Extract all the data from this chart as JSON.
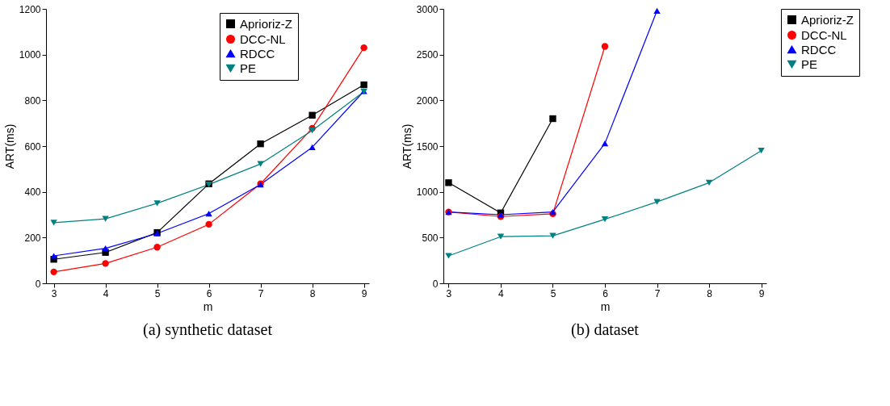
{
  "chart_data": [
    {
      "type": "line",
      "title": "(a) synthetic dataset",
      "xlabel": "m",
      "ylabel": "ART(ms)",
      "x": [
        3,
        4,
        5,
        6,
        7,
        8,
        9
      ],
      "xlim": [
        2.85,
        9.1
      ],
      "xticks": [
        3,
        4,
        5,
        6,
        7,
        8,
        9
      ],
      "ylim": [
        0,
        1200
      ],
      "yticks": [
        0,
        200,
        400,
        600,
        800,
        1000,
        1200
      ],
      "grid": false,
      "legend": "top right",
      "line_style": "solid",
      "series": [
        {
          "name": "Aprioriz-Z",
          "color": "#000000",
          "marker": "square",
          "values": [
            105,
            135,
            222,
            435,
            610,
            735,
            868
          ]
        },
        {
          "name": "DCC-NL",
          "color": "#ff0000",
          "marker": "circle",
          "values": [
            50,
            87,
            158,
            258,
            435,
            678,
            1030
          ]
        },
        {
          "name": "RDCC",
          "color": "#0000ff",
          "marker": "triangle",
          "values": [
            120,
            153,
            218,
            305,
            432,
            595,
            840
          ]
        },
        {
          "name": "PE",
          "color": "#008080",
          "marker": "triangle-down",
          "values": [
            265,
            282,
            350,
            432,
            522,
            668,
            838
          ]
        }
      ]
    },
    {
      "type": "line",
      "title": "(b) dataset",
      "xlabel": "m",
      "ylabel": "ART(ms)",
      "x": [
        3,
        4,
        5,
        6,
        7,
        8,
        9
      ],
      "xlim": [
        2.9,
        9.1
      ],
      "xticks": [
        3,
        4,
        5,
        6,
        7,
        8,
        9
      ],
      "ylim": [
        0,
        3000
      ],
      "yticks": [
        0,
        500,
        1000,
        1500,
        2000,
        2500,
        3000
      ],
      "grid": false,
      "legend": "right",
      "line_style": "solid",
      "series": [
        {
          "name": "Aprioriz-Z",
          "color": "#000000",
          "marker": "square",
          "values": [
            1100,
            770,
            1800,
            null,
            null,
            null,
            null
          ]
        },
        {
          "name": "DCC-NL",
          "color": "#ff0000",
          "marker": "circle",
          "values": [
            780,
            730,
            760,
            2590,
            null,
            null,
            null
          ]
        },
        {
          "name": "RDCC",
          "color": "#0000ff",
          "marker": "triangle",
          "values": [
            780,
            750,
            780,
            1530,
            2980,
            null,
            null
          ]
        },
        {
          "name": "PE",
          "color": "#008080",
          "marker": "triangle-down",
          "values": [
            300,
            510,
            520,
            700,
            890,
            1100,
            1450
          ]
        }
      ]
    }
  ]
}
